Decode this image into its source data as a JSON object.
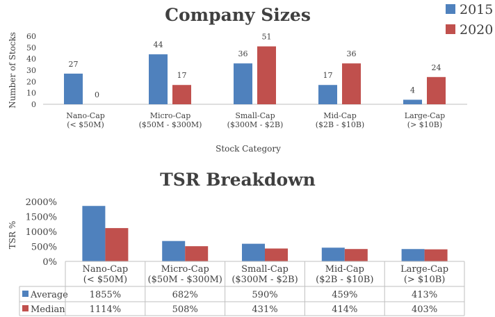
{
  "chart_data": [
    {
      "type": "bar",
      "title": "Company Sizes",
      "xlabel": "Stock Category",
      "ylabel": "Number of Stocks",
      "ylim": [
        0,
        60
      ],
      "yticks": [
        "0",
        "10",
        "20",
        "30",
        "40",
        "50",
        "60"
      ],
      "categories": [
        [
          "Nano-Cap",
          "(< $50M)"
        ],
        [
          "Micro-Cap",
          "($50M - $300M)"
        ],
        [
          "Small-Cap",
          "($300M - $2B)"
        ],
        [
          "Mid-Cap",
          "($2B - $10B)"
        ],
        [
          "Large-Cap",
          "(> $10B)"
        ]
      ],
      "series": [
        {
          "name": "2015",
          "color": "#4f81bd",
          "values": [
            27,
            44,
            36,
            17,
            4
          ]
        },
        {
          "name": "2020",
          "color": "#c0504d",
          "values": [
            0,
            17,
            51,
            36,
            24
          ]
        }
      ],
      "data_labels": true,
      "legend": "top-right",
      "grid": false
    },
    {
      "type": "bar",
      "title": "TSR Breakdown",
      "xlabel": "",
      "ylabel": "TSR %",
      "ylim": [
        0,
        2000
      ],
      "yticks": [
        "0%",
        "500%",
        "1000%",
        "1500%",
        "2000%"
      ],
      "categories": [
        [
          "Nano-Cap",
          "(< $50M)"
        ],
        [
          "Micro-Cap",
          "($50M - $300M)"
        ],
        [
          "Small-Cap",
          "($300M - $2B)"
        ],
        [
          "Mid-Cap",
          "($2B - $10B)"
        ],
        [
          "Large-Cap",
          "(> $10B)"
        ]
      ],
      "series": [
        {
          "name": "Average",
          "color": "#4f81bd",
          "values": [
            1855,
            682,
            590,
            459,
            413
          ],
          "labels": [
            "1855%",
            "682%",
            "590%",
            "459%",
            "413%"
          ]
        },
        {
          "name": "Median",
          "color": "#c0504d",
          "values": [
            1114,
            508,
            431,
            414,
            403
          ],
          "labels": [
            "1114%",
            "508%",
            "431%",
            "414%",
            "403%"
          ]
        }
      ],
      "data_table": true,
      "grid": false
    }
  ]
}
